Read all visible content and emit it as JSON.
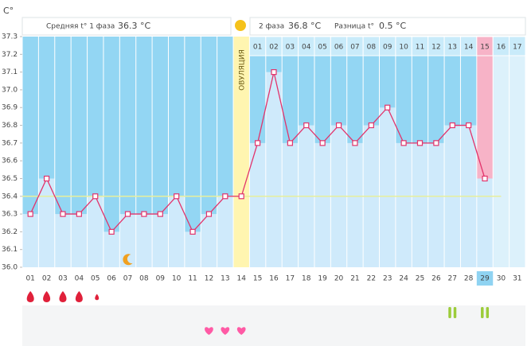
{
  "chart_data": {
    "type": "line",
    "y_axis_label": "C°",
    "header": {
      "phase1_label": "Средняя t° 1 фаза",
      "phase1_value": "36.3 °C",
      "phase2_label": "2 фаза",
      "phase2_value": "36.8 °C",
      "diff_label": "Разница t°",
      "diff_value": "0.5 °C"
    },
    "ovulation_label": "ОВУЛЯЦИЯ",
    "categories": [
      "01",
      "02",
      "03",
      "04",
      "05",
      "06",
      "07",
      "08",
      "09",
      "10",
      "11",
      "12",
      "13",
      "14",
      "15",
      "16",
      "17",
      "18",
      "19",
      "20",
      "21",
      "22",
      "23",
      "24",
      "25",
      "26",
      "27",
      "28",
      "29",
      "30",
      "31"
    ],
    "phase2_days": [
      "01",
      "02",
      "03",
      "04",
      "05",
      "06",
      "07",
      "08",
      "09",
      "10",
      "11",
      "12",
      "13",
      "14",
      "15",
      "16",
      "17"
    ],
    "values": [
      36.3,
      36.5,
      36.3,
      36.3,
      36.4,
      36.2,
      36.3,
      36.3,
      36.3,
      36.4,
      36.2,
      36.3,
      36.4,
      36.4,
      36.7,
      37.1,
      36.7,
      36.8,
      36.7,
      36.8,
      36.7,
      36.8,
      36.9,
      36.7,
      36.7,
      36.7,
      36.8,
      36.8,
      36.5,
      null,
      null
    ],
    "coverline": 36.4,
    "color": "#e2336b",
    "ylim": [
      36,
      37.3
    ],
    "yticks": [
      {
        "value": 36,
        "label": "36.0"
      },
      36.1,
      36.2,
      36.3,
      36.4,
      36.5,
      36.6,
      36.7,
      36.8,
      36.9,
      {
        "value": 37,
        "label": "37.0"
      },
      37.1,
      37.2,
      37.3
    ]
  }
}
